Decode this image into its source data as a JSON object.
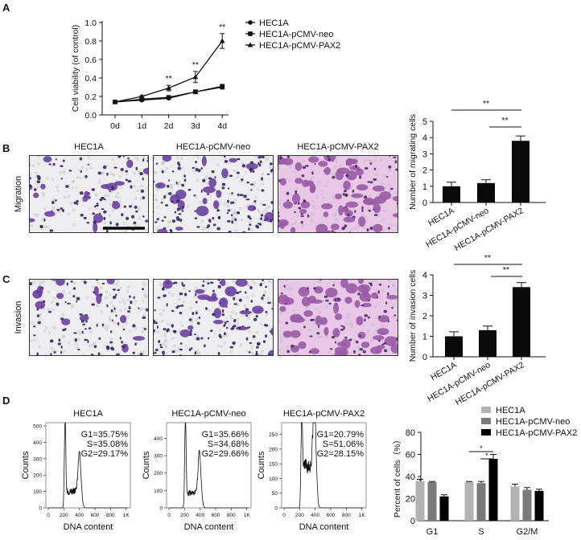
{
  "panel_labels": {
    "a": "A",
    "b": "B",
    "c": "C",
    "d": "D"
  },
  "images": {
    "titles": [
      "HEC1A",
      "HEC1A-pCMV-neo",
      "HEC1A-pCMV-PAX2"
    ],
    "row_labels": [
      "Migration",
      "Invasion"
    ]
  },
  "chart_data": [
    {
      "id": "A",
      "type": "line",
      "ylabel": "Cell viability (of control)",
      "xlabel": "",
      "categories": [
        "0d",
        "1d",
        "2d",
        "3d",
        "4d"
      ],
      "yticks": [
        "0.0",
        "0.2",
        "0.4",
        "0.6",
        "0.8",
        "1.0"
      ],
      "ylim": [
        0,
        1.0
      ],
      "series": [
        {
          "name": "HEC1A",
          "marker": "circle",
          "values": [
            0.14,
            0.16,
            0.18,
            0.25,
            0.3
          ],
          "err": [
            0.01,
            0.01,
            0.01,
            0.02,
            0.02
          ]
        },
        {
          "name": "HEC1A-pCMV-neo",
          "marker": "square",
          "values": [
            0.14,
            0.17,
            0.19,
            0.25,
            0.31
          ],
          "err": [
            0.01,
            0.01,
            0.01,
            0.02,
            0.02
          ]
        },
        {
          "name": "HEC1A-pCMV-PAX2",
          "marker": "triangle",
          "values": [
            0.14,
            0.2,
            0.29,
            0.41,
            0.8
          ],
          "err": [
            0.01,
            0.01,
            0.03,
            0.06,
            0.08
          ]
        }
      ],
      "annotations": [
        {
          "x": "2d",
          "text": "**"
        },
        {
          "x": "3d",
          "text": "**"
        },
        {
          "x": "4d",
          "text": "**"
        }
      ],
      "legend": "right"
    },
    {
      "id": "B",
      "type": "bar",
      "ylabel": "Number of  migrating cells",
      "categories": [
        "HEC1A",
        "HEC1A-pCMV-neo",
        "HEC1A-pCMV-PAX2"
      ],
      "values": [
        1.0,
        1.2,
        3.8
      ],
      "err": [
        0.25,
        0.2,
        0.3
      ],
      "yticks": [
        "0",
        "1",
        "2",
        "3",
        "4",
        "5"
      ],
      "ylim": [
        0,
        5
      ],
      "significance": [
        {
          "from": 0,
          "to": 2,
          "text": "**"
        },
        {
          "from": 1,
          "to": 2,
          "text": "**"
        }
      ]
    },
    {
      "id": "C",
      "type": "bar",
      "ylabel": "Number of  invasion cells",
      "categories": [
        "HEC1A",
        "HEC1A-pCMV-neo",
        "HEC1A-pCMV-PAX2"
      ],
      "values": [
        1.0,
        1.3,
        3.4
      ],
      "err": [
        0.22,
        0.2,
        0.22
      ],
      "yticks": [
        "0",
        "1",
        "2",
        "3",
        "4"
      ],
      "ylim": [
        0,
        4
      ],
      "significance": [
        {
          "from": 0,
          "to": 2,
          "text": "**"
        },
        {
          "from": 1,
          "to": 2,
          "text": "**"
        }
      ]
    },
    {
      "id": "D-hist",
      "type": "histogram",
      "xlabel": "DNA content",
      "ylabel": "Counts",
      "xticks": [
        "0",
        "200",
        "400",
        "600",
        "800",
        "1K"
      ],
      "xlim": [
        0,
        1024
      ],
      "plots": [
        {
          "title": "HEC1A",
          "yticks": [
            "0",
            "100",
            "200",
            "300",
            "400",
            "500"
          ],
          "ymax": 520,
          "ystep": 100,
          "g1_peak": [
            215,
            500
          ],
          "g2_peak": [
            405,
            265
          ],
          "s_level": 100,
          "stats": [
            "G1=35.75%",
            "S=35.08%",
            "G2=29.17%"
          ]
        },
        {
          "title": "HEC1A-pCMV-neo",
          "yticks": [
            "0",
            "100",
            "200",
            "300",
            "400"
          ],
          "ymax": 490,
          "ystep": 100,
          "g1_peak": [
            210,
            470
          ],
          "g2_peak": [
            395,
            260
          ],
          "s_level": 85,
          "stats": [
            "G1=35.66%",
            "S=34.68%",
            "G2=29.66%"
          ]
        },
        {
          "title": "HEC1A-pCMV-PAX2",
          "yticks": [
            "0",
            "50",
            "100",
            "150",
            "200",
            "250"
          ],
          "ymax": 290,
          "ystep": 50,
          "g1_peak": [
            225,
            275
          ],
          "g2_peak": [
            395,
            285
          ],
          "s_level": 140,
          "stats": [
            "G1=20.79%",
            "S=51.06%",
            "G2=28.15%"
          ]
        }
      ]
    },
    {
      "id": "D-bar",
      "type": "bar",
      "ylabel": "Percent of cells（%）",
      "categories": [
        "G1",
        "S",
        "G2/M"
      ],
      "yticks": [
        "0",
        "20",
        "40",
        "60",
        "80"
      ],
      "ylim": [
        0,
        80
      ],
      "series": [
        {
          "name": "HEC1A",
          "color": "#b3b3b3",
          "values": [
            36,
            35,
            31
          ],
          "err": [
            1.5,
            0.5,
            2
          ]
        },
        {
          "name": "HEC1A-pCMV-neo",
          "color": "#7a7a7a",
          "values": [
            35,
            34,
            28
          ],
          "err": [
            0.5,
            1.5,
            2
          ]
        },
        {
          "name": "HEC1A-pCMV-PAX2",
          "color": "#000000",
          "values": [
            22,
            56,
            27
          ],
          "err": [
            1.5,
            4,
            1.5
          ]
        }
      ],
      "significance": [
        {
          "group": "S",
          "text": "*"
        },
        {
          "group": "S",
          "text": "*"
        }
      ],
      "legend": "top-right"
    }
  ]
}
